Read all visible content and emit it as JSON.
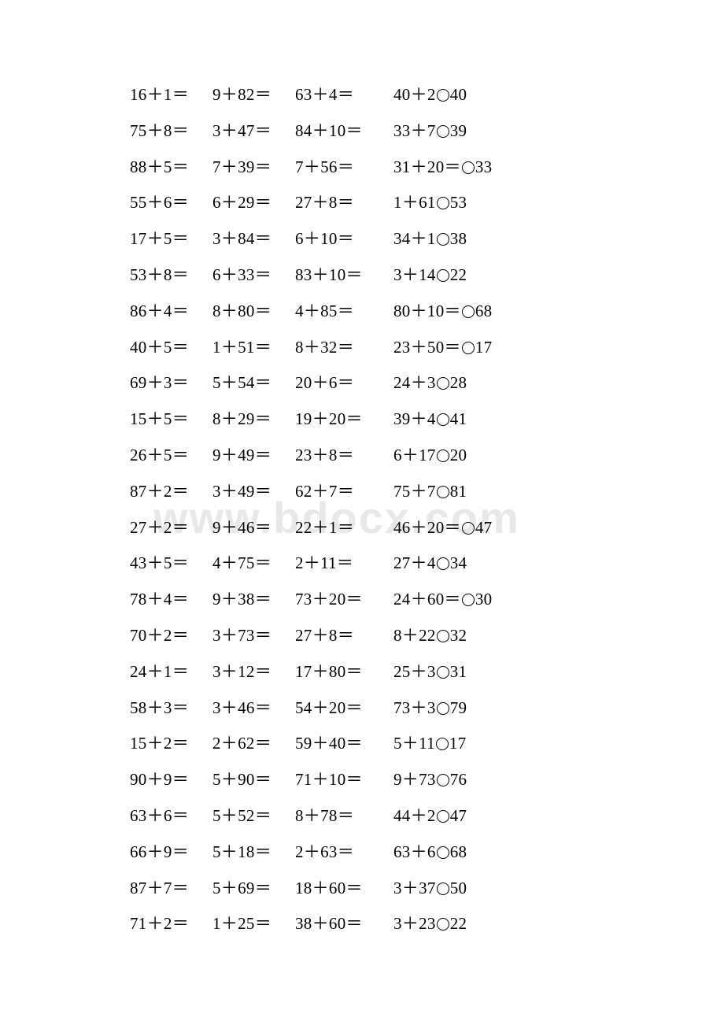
{
  "watermark_text": "www.bdocx.com",
  "text_color": "#000000",
  "background_color": "#ffffff",
  "watermark_color": "#e8e8e8",
  "font_size": 21,
  "rows": [
    {
      "c1": "16＋1＝",
      "c2": "9＋82＝",
      "c3": "63＋4＝",
      "c4a": "40＋2",
      "c4b": "40"
    },
    {
      "c1": "75＋8＝",
      "c2": "3＋47＝",
      "c3": "84＋10＝",
      "c4a": "33＋7",
      "c4b": "39"
    },
    {
      "c1": "88＋5＝",
      "c2": "7＋39＝",
      "c3": "7＋56＝",
      "c4a": "31＋20＝",
      "c4b": "33"
    },
    {
      "c1": "55＋6＝",
      "c2": "6＋29＝",
      "c3": "27＋8＝",
      "c4a": "1＋61",
      "c4b": "53"
    },
    {
      "c1": "17＋5＝",
      "c2": "3＋84＝",
      "c3": "6＋10＝",
      "c4a": "34＋1",
      "c4b": "38"
    },
    {
      "c1": "53＋8＝",
      "c2": "6＋33＝",
      "c3": "83＋10＝",
      "c4a": "3＋14",
      "c4b": "22"
    },
    {
      "c1": "86＋4＝",
      "c2": "8＋80＝",
      "c3": "4＋85＝",
      "c4a": "80＋10＝",
      "c4b": "68"
    },
    {
      "c1": "40＋5＝",
      "c2": "1＋51＝",
      "c3": "8＋32＝",
      "c4a": "23＋50＝",
      "c4b": "17"
    },
    {
      "c1": "69＋3＝",
      "c2": "5＋54＝",
      "c3": "20＋6＝",
      "c4a": "24＋3",
      "c4b": "28"
    },
    {
      "c1": "15＋5＝",
      "c2": "8＋29＝",
      "c3": "19＋20＝",
      "c4a": "39＋4",
      "c4b": "41"
    },
    {
      "c1": "26＋5＝",
      "c2": "9＋49＝",
      "c3": "23＋8＝",
      "c4a": "6＋17",
      "c4b": "20"
    },
    {
      "c1": "87＋2＝",
      "c2": "3＋49＝",
      "c3": "62＋7＝",
      "c4a": "75＋7",
      "c4b": "81"
    },
    {
      "c1": "27＋2＝",
      "c2": "9＋46＝",
      "c3": "22＋1＝",
      "c4a": "46＋20＝",
      "c4b": "47"
    },
    {
      "c1": "43＋5＝",
      "c2": "4＋75＝",
      "c3": "2＋11＝",
      "c4a": "27＋4",
      "c4b": "34"
    },
    {
      "c1": "78＋4＝",
      "c2": "9＋38＝",
      "c3": "73＋20＝",
      "c4a": "24＋60＝",
      "c4b": "30"
    },
    {
      "c1": "70＋2＝",
      "c2": "3＋73＝",
      "c3": "27＋8＝",
      "c4a": "8＋22",
      "c4b": "32"
    },
    {
      "c1": "24＋1＝",
      "c2": "3＋12＝",
      "c3": "17＋80＝",
      "c4a": "25＋3",
      "c4b": "31"
    },
    {
      "c1": "58＋3＝",
      "c2": "3＋46＝",
      "c3": "54＋20＝",
      "c4a": "73＋3",
      "c4b": "79"
    },
    {
      "c1": "15＋2＝",
      "c2": "2＋62＝",
      "c3": "59＋40＝",
      "c4a": "5＋11",
      "c4b": "17"
    },
    {
      "c1": "90＋9＝",
      "c2": "5＋90＝",
      "c3": "71＋10＝",
      "c4a": "9＋73",
      "c4b": "76"
    },
    {
      "c1": "63＋6＝",
      "c2": "5＋52＝",
      "c3": "8＋78＝",
      "c4a": "44＋2",
      "c4b": "47"
    },
    {
      "c1": "66＋9＝",
      "c2": "5＋18＝",
      "c3": "2＋63＝",
      "c4a": "63＋6",
      "c4b": "68"
    },
    {
      "c1": "87＋7＝",
      "c2": "5＋69＝",
      "c3": "18＋60＝",
      "c4a": "3＋37",
      "c4b": "50"
    },
    {
      "c1": "71＋2＝",
      "c2": "1＋25＝",
      "c3": "38＋60＝",
      "c4a": "3＋23",
      "c4b": "22"
    }
  ]
}
